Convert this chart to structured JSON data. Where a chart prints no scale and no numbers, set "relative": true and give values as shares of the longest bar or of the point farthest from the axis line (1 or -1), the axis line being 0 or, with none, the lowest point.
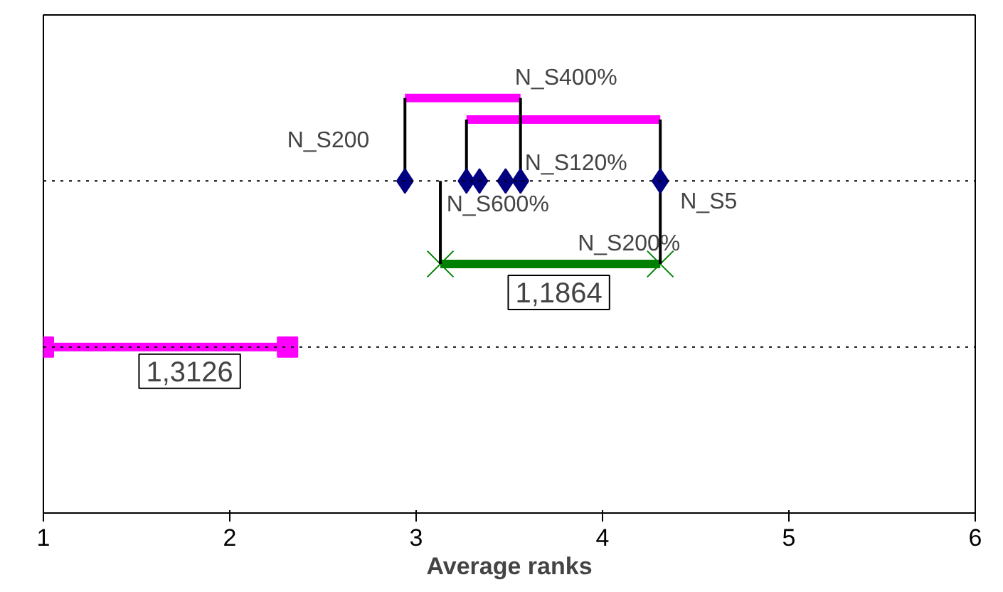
{
  "chart_data": {
    "type": "scatter",
    "relative": true,
    "xlabel": "Average ranks",
    "xlim": [
      1,
      6
    ],
    "xticks": [
      1,
      2,
      3,
      4,
      5,
      6
    ],
    "tick_labels": "x",
    "series": [
      {
        "type": "line",
        "color": "#ff00ff",
        "x": [
          2.94,
          3.56
        ],
        "values": [
          1.0,
          1.0
        ],
        "marker": "none"
      },
      {
        "type": "line",
        "color": "#ff00ff",
        "x": [
          3.27,
          4.31
        ],
        "values": [
          0.948,
          0.948
        ],
        "marker": "none"
      },
      {
        "type": "line",
        "color": "#008000",
        "x": [
          3.13,
          4.31
        ],
        "values": [
          0.6,
          0.6
        ],
        "marker": "cross"
      },
      {
        "type": "line",
        "color": "#ff00ff",
        "x": [
          1.0,
          2.31
        ],
        "values": [
          0.4,
          0.4
        ],
        "marker": "square"
      },
      {
        "type": "line",
        "color": "#000000",
        "x": [
          2.94,
          2.94
        ],
        "values": [
          0.8,
          1.0
        ],
        "marker": "none"
      },
      {
        "type": "line",
        "color": "#000000",
        "x": [
          3.56,
          3.56
        ],
        "values": [
          0.8,
          1.0
        ],
        "marker": "none"
      },
      {
        "type": "line",
        "color": "#000000",
        "x": [
          3.27,
          3.27
        ],
        "values": [
          0.8,
          0.948
        ],
        "marker": "none"
      },
      {
        "type": "line",
        "color": "#000000",
        "x": [
          4.31,
          4.31
        ],
        "values": [
          0.6,
          0.948
        ],
        "marker": "none"
      },
      {
        "type": "line",
        "color": "#000000",
        "x": [
          3.13,
          3.13
        ],
        "values": [
          0.6,
          0.8
        ],
        "marker": "none"
      },
      {
        "color": "#000080",
        "x": [
          2.94,
          3.27,
          3.34,
          3.48,
          3.56,
          4.31
        ],
        "values": [
          0.8,
          0.8,
          0.8,
          0.8,
          0.8,
          0.8
        ],
        "marker": "diamond"
      }
    ],
    "ref_lines": [
      {
        "axis": "y",
        "value": 0.8,
        "line_style": "dotted"
      },
      {
        "axis": "y",
        "value": 0.4,
        "line_style": "dotted"
      }
    ],
    "annotations": [
      {
        "text": "N_S200",
        "x": 2.94,
        "y": 0.8
      },
      {
        "text": "N_S400%",
        "x": 3.56,
        "y": 1.0
      },
      {
        "text": "N_S120%",
        "x": 3.56,
        "y": 0.8
      },
      {
        "text": "N_S600%",
        "x": 3.27,
        "y": 0.8
      },
      {
        "text": "N_S5",
        "x": 4.31,
        "y": 0.8
      },
      {
        "text": "N_S200%",
        "x": 4.31,
        "y": 0.6
      },
      {
        "text": "1,1864",
        "x": 3.72,
        "y": 0.6
      },
      {
        "text": "1,3126",
        "x": 1.655,
        "y": 0.4
      }
    ]
  }
}
